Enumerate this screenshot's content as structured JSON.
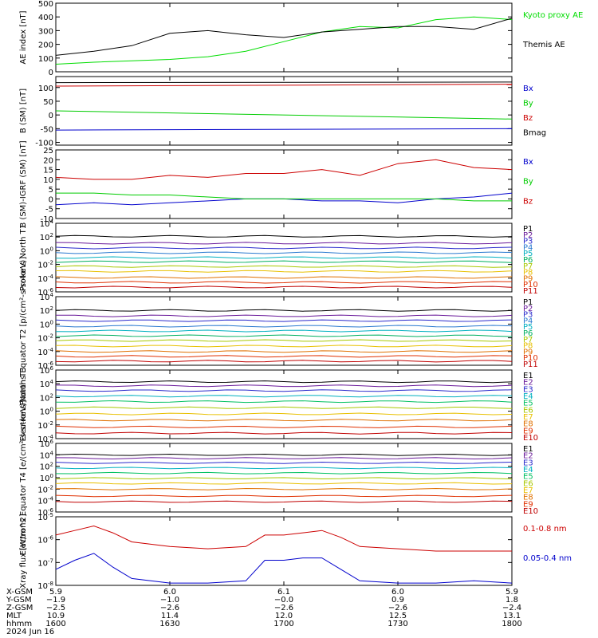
{
  "chart_data": [
    {
      "type": "line",
      "ylabel": "AE index [nT]",
      "ylim": [
        0,
        500
      ],
      "yticks": [
        "500",
        "400",
        "300",
        "200",
        "100",
        "0"
      ],
      "ytick_values": [
        500,
        400,
        300,
        200,
        100,
        0
      ],
      "log": false,
      "series": [
        {
          "name": "Kyoto proxy AE",
          "color": "#00dd00",
          "x": [
            0,
            10,
            20,
            30,
            40,
            50,
            60,
            70,
            80,
            90,
            100,
            110,
            120
          ],
          "y": [
            55,
            70,
            80,
            90,
            110,
            150,
            220,
            290,
            330,
            320,
            380,
            400,
            380
          ]
        },
        {
          "name": "Themis AE",
          "color": "#000000",
          "x": [
            0,
            10,
            20,
            30,
            40,
            50,
            60,
            70,
            80,
            90,
            100,
            110,
            120
          ],
          "y": [
            120,
            150,
            190,
            280,
            300,
            270,
            250,
            290,
            310,
            330,
            330,
            310,
            390
          ]
        }
      ]
    },
    {
      "type": "line",
      "ylabel": "B (SM) [nT]",
      "ylim": [
        -110,
        140
      ],
      "yticks": [
        "100",
        "50",
        "0",
        "-50",
        "-100"
      ],
      "ytick_values": [
        100,
        50,
        0,
        -50,
        -100
      ],
      "log": false,
      "series": [
        {
          "name": "Bx",
          "color": "#0000cc",
          "x": [
            0,
            120
          ],
          "y": [
            -55,
            -50
          ]
        },
        {
          "name": "By",
          "color": "#00cc00",
          "x": [
            0,
            120
          ],
          "y": [
            15,
            -15
          ]
        },
        {
          "name": "Bz",
          "color": "#cc0000",
          "x": [
            0,
            120
          ],
          "y": [
            105,
            112
          ]
        },
        {
          "name": "Bmag",
          "color": "#000000",
          "x": [
            0,
            120
          ],
          "y": [
            118,
            120
          ]
        }
      ]
    },
    {
      "type": "line",
      "ylabel": "B (SM)-IGRF (SM) [nT]",
      "ylim": [
        -10,
        25
      ],
      "yticks": [
        "25",
        "20",
        "15",
        "10",
        "5",
        "0",
        "-5",
        "-10"
      ],
      "ytick_values": [
        25,
        20,
        15,
        10,
        5,
        0,
        -5,
        -10
      ],
      "log": false,
      "series": [
        {
          "name": "Bx",
          "color": "#0000cc",
          "x": [
            0,
            10,
            20,
            30,
            40,
            50,
            60,
            70,
            80,
            90,
            100,
            110,
            120
          ],
          "y": [
            -3,
            -2,
            -3,
            -2,
            -1,
            0,
            0,
            -1,
            -1,
            -2,
            0,
            1,
            3
          ]
        },
        {
          "name": "By",
          "color": "#00cc00",
          "x": [
            0,
            10,
            20,
            30,
            40,
            50,
            60,
            70,
            80,
            90,
            100,
            110,
            120
          ],
          "y": [
            3,
            3,
            2,
            2,
            1,
            0,
            0,
            0,
            0,
            0,
            0,
            -1,
            -1
          ]
        },
        {
          "name": "Bz",
          "color": "#cc0000",
          "x": [
            0,
            10,
            20,
            30,
            40,
            50,
            60,
            70,
            80,
            90,
            100,
            110,
            120
          ],
          "y": [
            11,
            10,
            10,
            12,
            11,
            13,
            13,
            15,
            12,
            18,
            20,
            16,
            15
          ]
        }
      ]
    },
    {
      "type": "line",
      "ylabel": "Protons North T1",
      "ylim_exp": [
        -6,
        4
      ],
      "yticks": [
        "10^4",
        "10^2",
        "10^0",
        "10^-2",
        "10^-4",
        "10^-6"
      ],
      "ytick_values": [
        4,
        2,
        0,
        -2,
        -4,
        -6
      ],
      "log": true,
      "series": [
        {
          "name": "P1",
          "color": "#000000",
          "y": [
            2.1
          ]
        },
        {
          "name": "P2",
          "color": "#6a1a9a",
          "y": [
            1.1
          ]
        },
        {
          "name": "P3",
          "color": "#2a2acc",
          "y": [
            0.4
          ]
        },
        {
          "name": "P4",
          "color": "#2a7ad0",
          "y": [
            -0.3
          ]
        },
        {
          "name": "P5",
          "color": "#00b0c0",
          "y": [
            -1.0
          ]
        },
        {
          "name": "P6",
          "color": "#00b060",
          "y": [
            -1.6
          ]
        },
        {
          "name": "P7",
          "color": "#a8c800",
          "y": [
            -2.3
          ]
        },
        {
          "name": "P8",
          "color": "#e8c000",
          "y": [
            -3.0
          ]
        },
        {
          "name": "P9",
          "color": "#e07000",
          "y": [
            -3.9
          ]
        },
        {
          "name": "P10",
          "color": "#e03000",
          "y": [
            -4.6
          ]
        },
        {
          "name": "P11",
          "color": "#c00000",
          "y": [
            -5.3
          ]
        }
      ]
    },
    {
      "type": "line",
      "ylabel": "Protons Equator T2 [p/(cm²-s-sr-keV)]",
      "ylim_exp": [
        -6,
        4
      ],
      "yticks": [
        "10^4",
        "10^2",
        "10^0",
        "10^-2",
        "10^-4",
        "10^-6"
      ],
      "ytick_values": [
        4,
        2,
        0,
        -2,
        -4,
        -6
      ],
      "log": true,
      "series": [
        {
          "name": "P1",
          "color": "#000000",
          "y": [
            2.0
          ]
        },
        {
          "name": "P2",
          "color": "#6a1a9a",
          "y": [
            1.2
          ]
        },
        {
          "name": "P3",
          "color": "#2a2acc",
          "y": [
            0.5
          ]
        },
        {
          "name": "P4",
          "color": "#2a7ad0",
          "y": [
            -0.3
          ]
        },
        {
          "name": "P5",
          "color": "#00b0c0",
          "y": [
            -1.0
          ]
        },
        {
          "name": "P6",
          "color": "#00b060",
          "y": [
            -1.7
          ]
        },
        {
          "name": "P7",
          "color": "#a8c800",
          "y": [
            -2.4
          ]
        },
        {
          "name": "P8",
          "color": "#e8c000",
          "y": [
            -3.2
          ]
        },
        {
          "name": "P9",
          "color": "#e07000",
          "y": [
            -4.0
          ]
        },
        {
          "name": "P10",
          "color": "#e03000",
          "y": [
            -4.7
          ]
        },
        {
          "name": "P11",
          "color": "#c00000",
          "y": [
            -5.4
          ]
        }
      ]
    },
    {
      "type": "line",
      "ylabel": "Electrons North T3",
      "ylim_exp": [
        -4,
        6
      ],
      "yticks": [
        "10^6",
        "10^4",
        "10^2",
        "10^0",
        "10^-2",
        "10^-4"
      ],
      "ytick_values": [
        6,
        4,
        2,
        0,
        -2,
        -4
      ],
      "log": true,
      "series": [
        {
          "name": "E1",
          "color": "#000000",
          "y": [
            4.3
          ]
        },
        {
          "name": "E2",
          "color": "#6a1a9a",
          "y": [
            3.7
          ]
        },
        {
          "name": "E3",
          "color": "#2a2acc",
          "y": [
            3.0
          ]
        },
        {
          "name": "E4",
          "color": "#00b0c0",
          "y": [
            2.2
          ]
        },
        {
          "name": "E5",
          "color": "#00c060",
          "y": [
            1.4
          ]
        },
        {
          "name": "E6",
          "color": "#a8c800",
          "y": [
            0.5
          ]
        },
        {
          "name": "E7",
          "color": "#e8c000",
          "y": [
            -0.4
          ]
        },
        {
          "name": "E8",
          "color": "#e07000",
          "y": [
            -1.3
          ]
        },
        {
          "name": "E9",
          "color": "#e03000",
          "y": [
            -2.3
          ]
        },
        {
          "name": "E10",
          "color": "#c00000",
          "y": [
            -3.2
          ]
        }
      ]
    },
    {
      "type": "line",
      "ylabel": "Electrons Equator T4 [e/(cm²-s-sr-keV)]",
      "ylim_exp": [
        -6,
        6
      ],
      "yticks": [
        "10^6",
        "10^4",
        "10^2",
        "10^0",
        "10^-2",
        "10^-4",
        "10^-6"
      ],
      "ytick_values": [
        6,
        4,
        2,
        0,
        -2,
        -4,
        -6
      ],
      "log": true,
      "series": [
        {
          "name": "E1",
          "color": "#000000",
          "y": [
            4.0
          ]
        },
        {
          "name": "E2",
          "color": "#6a1a9a",
          "y": [
            3.4
          ]
        },
        {
          "name": "E3",
          "color": "#2a2acc",
          "y": [
            2.6
          ]
        },
        {
          "name": "E4",
          "color": "#00b0c0",
          "y": [
            1.7
          ]
        },
        {
          "name": "E5",
          "color": "#00c060",
          "y": [
            0.8
          ]
        },
        {
          "name": "E6",
          "color": "#a8c800",
          "y": [
            -0.1
          ]
        },
        {
          "name": "E7",
          "color": "#e8c000",
          "y": [
            -1.0
          ]
        },
        {
          "name": "E8",
          "color": "#e07000",
          "y": [
            -2.0
          ]
        },
        {
          "name": "E9",
          "color": "#e03000",
          "y": [
            -3.2
          ]
        },
        {
          "name": "E10",
          "color": "#c00000",
          "y": [
            -4.2
          ]
        }
      ]
    },
    {
      "type": "line",
      "ylabel": "Xray flux [W/m^2]",
      "ylim_exp": [
        -8,
        -5
      ],
      "yticks": [
        "10^-5",
        "10^-6",
        "10^-7",
        "10^-8"
      ],
      "ytick_values": [
        -5,
        -6,
        -7,
        -8
      ],
      "log": true,
      "series": [
        {
          "name": "0.1-0.8 nm",
          "color": "#cc0000",
          "x": [
            0,
            5,
            10,
            15,
            20,
            30,
            40,
            50,
            55,
            60,
            65,
            70,
            75,
            80,
            90,
            100,
            110,
            120
          ],
          "y": [
            -5.8,
            -5.6,
            -5.4,
            -5.7,
            -6.1,
            -6.3,
            -6.4,
            -6.3,
            -5.8,
            -5.8,
            -5.7,
            -5.6,
            -5.9,
            -6.3,
            -6.4,
            -6.5,
            -6.5,
            -6.5
          ]
        },
        {
          "name": "0.05-0.4 nm",
          "color": "#0000cc",
          "x": [
            0,
            5,
            10,
            15,
            20,
            30,
            40,
            50,
            55,
            60,
            65,
            70,
            75,
            80,
            90,
            100,
            110,
            120
          ],
          "y": [
            -7.3,
            -6.9,
            -6.6,
            -7.2,
            -7.7,
            -7.9,
            -7.9,
            -7.8,
            -6.9,
            -6.9,
            -6.8,
            -6.8,
            -7.3,
            -7.8,
            -7.9,
            -7.9,
            -7.8,
            -7.9
          ]
        }
      ]
    }
  ],
  "axis_bottom": {
    "rows": [
      {
        "label": "X-GSM",
        "values": [
          "5.9",
          "6.0",
          "6.1",
          "6.0",
          "5.9"
        ]
      },
      {
        "label": "Y-GSM",
        "values": [
          "−1.9",
          "−1.0",
          "−0.0",
          "0.9",
          "1.8"
        ]
      },
      {
        "label": "Z-GSM",
        "values": [
          "−2.5",
          "−2.6",
          "−2.6",
          "−2.6",
          "−2.4"
        ]
      },
      {
        "label": "MLT",
        "values": [
          "10.9",
          "11.4",
          "12.0",
          "12.5",
          "13.1"
        ]
      },
      {
        "label": "hhmm",
        "values": [
          "1600",
          "1630",
          "1700",
          "1730",
          "1800"
        ]
      }
    ],
    "date": "2024 Jun 16"
  }
}
